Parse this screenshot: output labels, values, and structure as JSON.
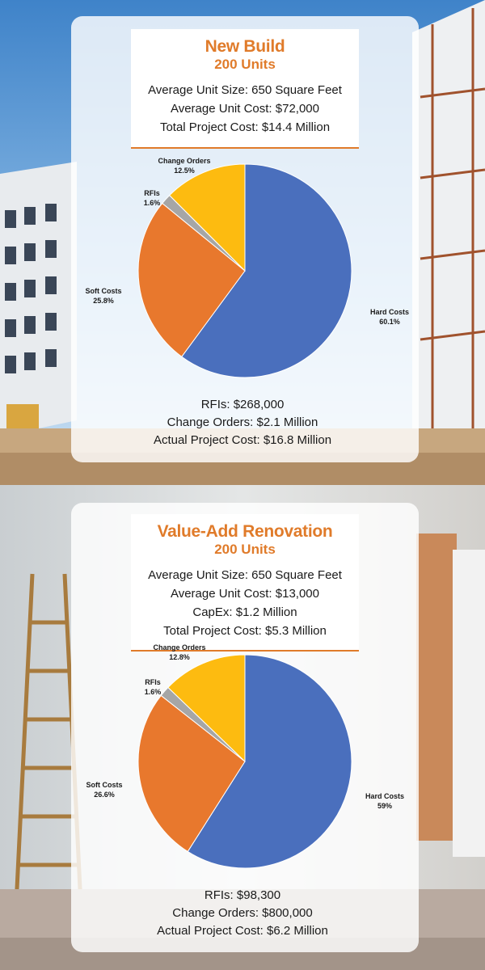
{
  "colors": {
    "hard": "#4a6fbd",
    "soft": "#e8782d",
    "rfi": "#a6a6a6",
    "change": "#fdbb10",
    "accent": "#e07b2a"
  },
  "panels": [
    {
      "title": "New Build",
      "subtitle": "200 Units",
      "stats": [
        "Average Unit Size: 650 Square Feet",
        "Average Unit Cost: $72,000",
        "Total Project Cost: $14.4 Million"
      ],
      "footer": [
        "RFIs: $268,000",
        "Change Orders: $2.1 Million",
        "Actual Project Cost: $16.8 Million"
      ]
    },
    {
      "title": "Value-Add Renovation",
      "subtitle": "200 Units",
      "stats": [
        "Average Unit Size: 650 Square Feet",
        "Average Unit Cost: $13,000",
        "CapEx: $1.2 Million",
        "Total Project Cost: $5.3 Million"
      ],
      "footer": [
        "RFIs: $98,300",
        "Change Orders: $800,000",
        "Actual Project Cost: $6.2 Million"
      ]
    }
  ],
  "chart_data": [
    {
      "type": "pie",
      "slices": [
        {
          "name": "Hard Costs",
          "pct_label": "60.1%",
          "value": 60.1
        },
        {
          "name": "Soft Costs",
          "pct_label": "25.8%",
          "value": 25.8
        },
        {
          "name": "RFIs",
          "pct_label": "1.6%",
          "value": 1.6
        },
        {
          "name": "Change Orders",
          "pct_label": "12.5%",
          "value": 12.5
        }
      ]
    },
    {
      "type": "pie",
      "slices": [
        {
          "name": "Hard Costs",
          "pct_label": "59%",
          "value": 59
        },
        {
          "name": "Soft Costs",
          "pct_label": "26.6%",
          "value": 26.6
        },
        {
          "name": "RFIs",
          "pct_label": "1.6%",
          "value": 1.6
        },
        {
          "name": "Change Orders",
          "pct_label": "12.8%",
          "value": 12.8
        }
      ]
    }
  ]
}
